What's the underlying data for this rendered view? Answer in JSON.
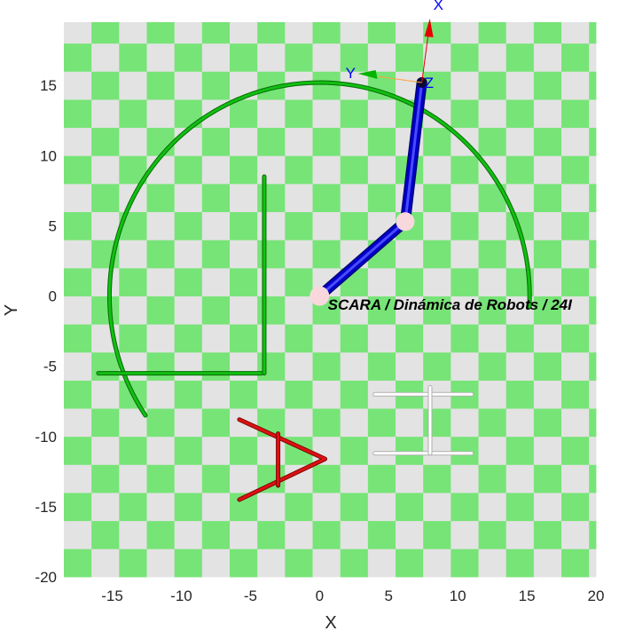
{
  "chart_data": {
    "type": "line",
    "title": "",
    "xlabel": "X",
    "ylabel": "Y",
    "xlim": [
      -18.5,
      20
    ],
    "ylim": [
      -20,
      19.5
    ],
    "xticks": [
      "-15",
      "-10",
      "-5",
      "0",
      "5",
      "10",
      "15",
      "20"
    ],
    "yticks": [
      "-20",
      "-15",
      "-10",
      "-5",
      "0",
      "5",
      "10",
      "15"
    ],
    "xtick_values": [
      -15,
      -10,
      -5,
      0,
      5,
      10,
      15,
      20
    ],
    "ytick_values": [
      -20,
      -15,
      -10,
      -5,
      0,
      5,
      10,
      15
    ],
    "grid": false,
    "background": {
      "pattern": "checkerboard",
      "color_a": "#77e477",
      "color_b": "#e3e3e3",
      "cell_units": 2
    },
    "annotation": {
      "text": "SCARA / Dinámica de Robots / 24I",
      "x": 0.6,
      "y": -0.6
    },
    "robot": {
      "color": "#0000c8",
      "joint_color": "#f8d8dc",
      "base": [
        0,
        0
      ],
      "elbow": [
        6.2,
        5.3
      ],
      "tip": [
        7.4,
        15.2
      ]
    },
    "tool_frame": {
      "origin": [
        7.4,
        15.2
      ],
      "x_label": "X",
      "y_label": "Y",
      "z_label": "Z",
      "x_color": "#e60000",
      "y_color": "#00b400",
      "z_color": "#0000ff"
    },
    "series": [
      {
        "name": "",
        "color": "#10c010",
        "style": "beaded",
        "segments": [
          {
            "shape": "arc",
            "center": [
              0,
              0
            ],
            "radius": 15.2,
            "start_deg": -3,
            "end_deg": 214
          },
          {
            "shape": "line",
            "points": [
              [
                -16,
                -5.5
              ],
              [
                -4.2,
                -5.5
              ]
            ]
          },
          {
            "shape": "line",
            "points": [
              [
                -4,
                8.5
              ],
              [
                -4,
                -5.5
              ]
            ]
          }
        ]
      },
      {
        "name": "",
        "color": "#e01010",
        "style": "beaded",
        "segments": [
          {
            "shape": "line",
            "points": [
              [
                -5.8,
                -8.8
              ],
              [
                0.4,
                -11.6
              ],
              [
                -5.8,
                -14.5
              ]
            ]
          },
          {
            "shape": "line",
            "points": [
              [
                -3,
                -9.8
              ],
              [
                -3,
                -13.5
              ]
            ]
          }
        ]
      },
      {
        "name": "",
        "color": "#ffffff",
        "style": "tube",
        "segments": [
          {
            "shape": "line",
            "points": [
              [
                4,
                -7
              ],
              [
                11,
                -7
              ]
            ]
          },
          {
            "shape": "line",
            "points": [
              [
                4,
                -11.2
              ],
              [
                11,
                -11.2
              ]
            ]
          },
          {
            "shape": "line",
            "points": [
              [
                8,
                -6.5
              ],
              [
                8,
                -11.2
              ]
            ]
          }
        ]
      }
    ]
  }
}
